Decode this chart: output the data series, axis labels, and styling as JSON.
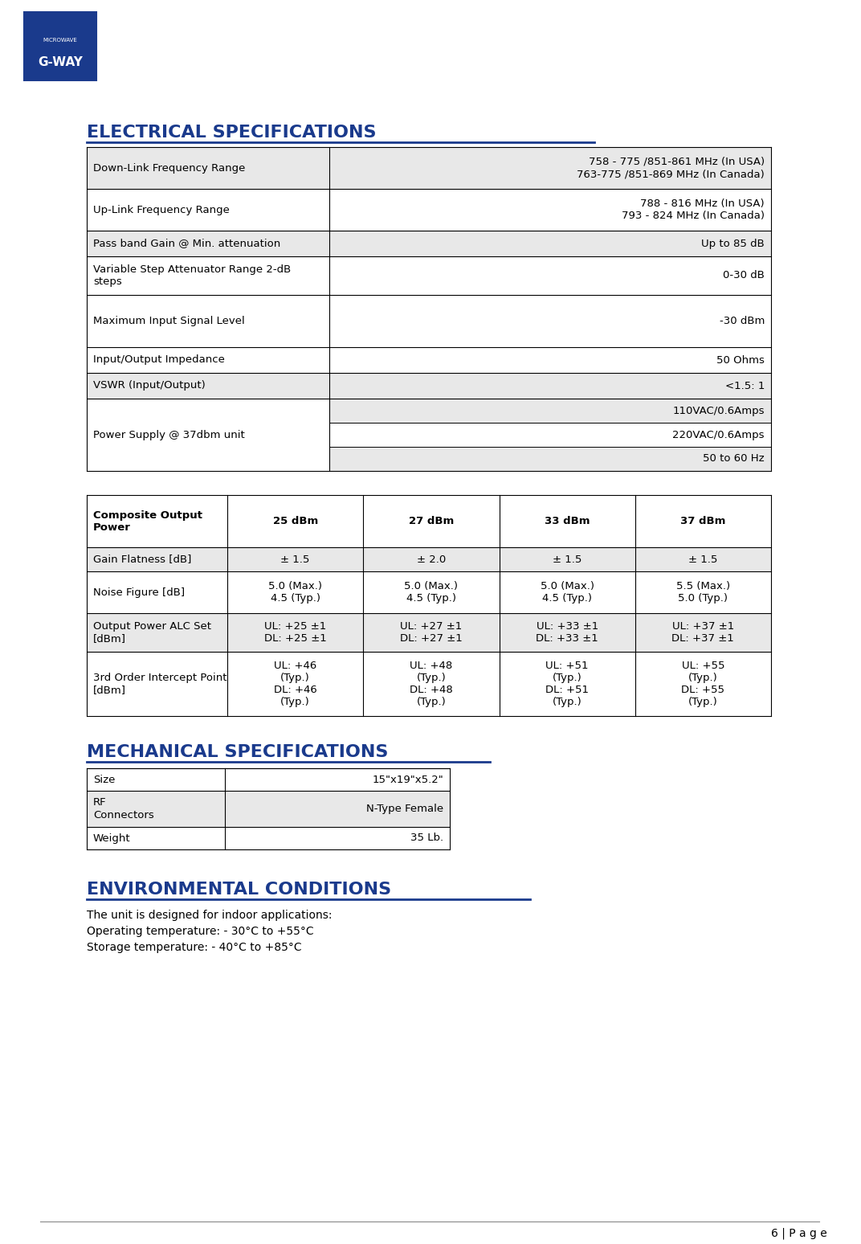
{
  "page_bg": "#ffffff",
  "logo_placeholder": true,
  "title_electrical": "ELECTRICAL SPECIFICATIONS",
  "title_mechanical": "MECHANICAL SPECIFICATIONS",
  "title_environmental": "ENVIRONMENTAL CONDITIONS",
  "heading_color": "#1a3a8c",
  "table_border_color": "#000000",
  "row_alt_color": "#e8e8e8",
  "row_white_color": "#ffffff",
  "text_color": "#000000",
  "electrical_rows": [
    {
      "label": "Down-Link Frequency Range",
      "value": "758 - 775 /851-861 MHz (In USA)\n763-775 /851-869 MHz (In Canada)",
      "shaded": true
    },
    {
      "label": "Up-Link Frequency Range",
      "value": "788 - 816 MHz (In USA)\n793 - 824 MHz (In Canada)",
      "shaded": false
    },
    {
      "label": "Pass band Gain @ Min. attenuation",
      "value": "Up to 85 dB",
      "shaded": true
    },
    {
      "label": "Variable Step Attenuator Range 2-dB\nsteps",
      "value": "0-30 dB",
      "shaded": false
    },
    {
      "label": "Maximum Input Signal Level",
      "value": "-30 dBm",
      "shaded": false,
      "tall": true
    },
    {
      "label": "Input/Output Impedance",
      "value": "50 Ohms",
      "shaded": false
    },
    {
      "label": "VSWR (Input/Output)",
      "value": "<1.5: 1",
      "shaded": true
    },
    {
      "label": "Power Supply @ 37dbm unit",
      "value_lines": [
        "110VAC/0.6Amps",
        "220VAC/0.6Amps",
        "50 to 60 Hz"
      ],
      "shaded": false,
      "multi_row": true
    }
  ],
  "composite_headers": [
    "Composite Output\nPower",
    "25 dBm",
    "27 dBm",
    "33 dBm",
    "37 dBm"
  ],
  "composite_rows": [
    {
      "label": "Gain Flatness [dB]",
      "values": [
        "± 1.5",
        "± 2.0",
        "± 1.5",
        "± 1.5"
      ],
      "shaded": true
    },
    {
      "label": "Noise Figure [dB]",
      "values": [
        "5.0 (Max.)\n4.5 (Typ.)",
        "5.0 (Max.)\n4.5 (Typ.)",
        "5.0 (Max.)\n4.5 (Typ.)",
        "5.5 (Max.)\n5.0 (Typ.)"
      ],
      "shaded": false
    },
    {
      "label": "Output Power ALC Set\n[dBm]",
      "values": [
        "UL: +25 ±1\nDL: +25 ±1",
        "UL: +27 ±1\nDL: +27 ±1",
        "UL: +33 ±1\nDL: +33 ±1",
        "UL: +37 ±1\nDL: +37 ±1"
      ],
      "shaded": true
    },
    {
      "label": "3rd Order Intercept Point\n[dBm]",
      "values": [
        "UL: +46\n(Typ.)\nDL: +46\n(Typ.)",
        "UL: +48\n(Typ.)\nDL: +48\n(Typ.)",
        "UL: +51\n(Typ.)\nDL: +51\n(Typ.)",
        "UL: +55\n(Typ.)\nDL: +55\n(Typ.)"
      ],
      "shaded": false
    }
  ],
  "mechanical_rows": [
    {
      "label": "Size",
      "value": "15\"x19\"x5.2\"",
      "shaded": false
    },
    {
      "label": "RF\nConnectors",
      "value": "N-Type Female",
      "shaded": true
    },
    {
      "label": "Weight",
      "value": "35 Lb.",
      "shaded": false
    }
  ],
  "environmental_text": [
    "The unit is designed for indoor applications:",
    "Operating temperature: - 30°C to +55°C",
    "Storage temperature: - 40°C to +85°C"
  ],
  "footer_text": "6 | P a g e"
}
